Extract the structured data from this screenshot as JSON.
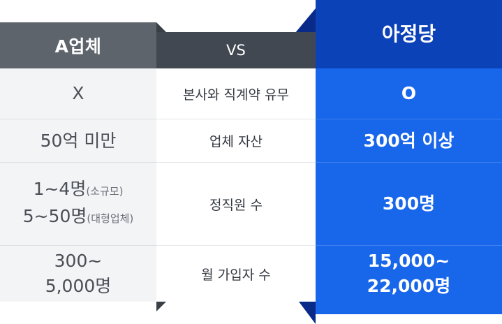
{
  "comparison": {
    "vs_label": "VS",
    "competitor": {
      "title": "A업체",
      "rows": [
        {
          "line1": "X"
        },
        {
          "line1": "50억 미만"
        },
        {
          "line1": "1~4명",
          "line1_note": "(소규모)",
          "line2": "5~50명",
          "line2_note": "(대형업체)"
        },
        {
          "line1": "300~",
          "line2": "5,000명"
        }
      ]
    },
    "criteria": [
      "본사와 직계약 유무",
      "업체 자산",
      "정직원 수",
      "월 가입자 수"
    ],
    "ours": {
      "title": "아정당",
      "rows": [
        {
          "line1": "O"
        },
        {
          "line1": "300억 이상"
        },
        {
          "line1": "300명"
        },
        {
          "line1": "15,000~",
          "line2": "22,000명"
        }
      ]
    }
  },
  "colors": {
    "competitor_header": "#5d646c",
    "competitor_body": "#f3f4f6",
    "vs_header": "#424851",
    "ours_header": "#0c42b8",
    "ours_body": "#1866ea"
  }
}
